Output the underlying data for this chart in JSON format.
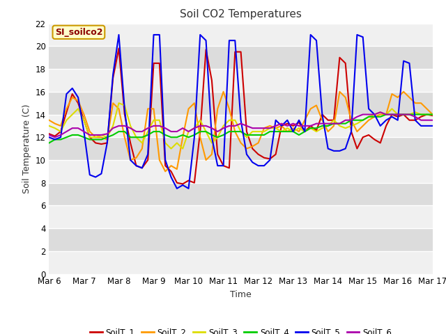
{
  "title": "Soil CO2 Temperatures",
  "xlabel": "Time",
  "ylabel": "Soil Temperature (C)",
  "annotation": "SI_soilco2",
  "ylim": [
    0,
    22
  ],
  "yticks": [
    0,
    2,
    4,
    6,
    8,
    10,
    12,
    14,
    16,
    18,
    20,
    22
  ],
  "x_labels": [
    "Mar 6",
    "Mar 7",
    "Mar 8",
    "Mar 9",
    "Mar 10",
    "Mar 11",
    "Mar 12",
    "Mar 13",
    "Mar 14",
    "Mar 15",
    "Mar 16",
    "Mar 17"
  ],
  "colors": {
    "SoilT_1": "#cc0000",
    "SoilT_2": "#ff9900",
    "SoilT_3": "#dddd00",
    "SoilT_4": "#00cc00",
    "SoilT_5": "#0000ee",
    "SoilT_6": "#aa00aa"
  },
  "fig_bg": "#ffffff",
  "plot_bg_dark": "#dcdcdc",
  "plot_bg_light": "#f0f0f0",
  "grid_color": "#ffffff",
  "SoilT_1": [
    12.3,
    12.1,
    12.5,
    14.2,
    15.8,
    15.0,
    13.5,
    12.0,
    11.5,
    11.4,
    11.5,
    17.2,
    19.8,
    14.0,
    11.5,
    9.5,
    9.3,
    10.0,
    18.5,
    18.5,
    9.5,
    9.0,
    8.0,
    7.9,
    8.2,
    8.0,
    12.5,
    19.7,
    17.0,
    10.5,
    9.5,
    9.3,
    19.5,
    19.5,
    12.5,
    11.0,
    10.5,
    10.2,
    10.1,
    10.5,
    13.0,
    13.2,
    13.0,
    13.3,
    12.5,
    13.0,
    12.6,
    14.0,
    13.5,
    13.5,
    19.0,
    18.5,
    12.5,
    11.0,
    12.0,
    12.2,
    11.8,
    11.5,
    13.0,
    14.0,
    13.8,
    14.0,
    13.5,
    13.5,
    13.8,
    14.0,
    13.9
  ],
  "SoilT_2": [
    13.5,
    13.2,
    13.0,
    14.5,
    15.5,
    15.2,
    14.0,
    12.5,
    12.0,
    12.0,
    11.8,
    15.0,
    14.5,
    12.0,
    10.0,
    10.2,
    11.0,
    14.5,
    14.5,
    10.0,
    9.0,
    9.5,
    9.2,
    12.0,
    14.5,
    15.0,
    12.0,
    10.0,
    10.5,
    14.5,
    16.0,
    14.5,
    12.5,
    11.5,
    11.0,
    11.2,
    11.5,
    12.8,
    13.0,
    12.8,
    13.0,
    12.5,
    12.8,
    12.5,
    13.5,
    14.5,
    14.8,
    13.5,
    12.5,
    13.0,
    16.0,
    15.5,
    13.5,
    12.5,
    13.0,
    13.5,
    13.8,
    14.0,
    14.0,
    15.8,
    15.5,
    16.0,
    15.5,
    15.0,
    15.0,
    14.5,
    14.0
  ],
  "SoilT_3": [
    13.0,
    12.8,
    12.5,
    13.5,
    14.0,
    14.5,
    13.5,
    12.0,
    12.0,
    12.2,
    12.0,
    13.0,
    15.0,
    14.8,
    13.0,
    12.0,
    11.5,
    12.5,
    13.5,
    13.5,
    11.5,
    11.0,
    11.5,
    11.0,
    12.5,
    12.8,
    13.5,
    12.5,
    11.5,
    12.0,
    13.0,
    13.5,
    13.5,
    12.5,
    12.0,
    12.5,
    12.5,
    12.5,
    12.8,
    12.8,
    12.5,
    12.8,
    12.5,
    12.8,
    12.5,
    12.8,
    12.5,
    12.8,
    13.0,
    13.5,
    13.0,
    12.8,
    13.0,
    13.2,
    13.5,
    13.8,
    14.0,
    14.2,
    14.0,
    14.5,
    14.0,
    14.0,
    14.0,
    14.2,
    14.0,
    14.0,
    14.0
  ],
  "SoilT_4": [
    11.5,
    11.8,
    11.8,
    12.0,
    12.2,
    12.2,
    12.0,
    11.8,
    11.8,
    11.8,
    12.0,
    12.2,
    12.5,
    12.5,
    12.0,
    12.0,
    12.0,
    12.2,
    12.5,
    12.5,
    12.2,
    12.0,
    12.0,
    12.2,
    12.0,
    12.2,
    12.5,
    12.5,
    12.2,
    12.0,
    12.2,
    12.5,
    12.5,
    12.5,
    12.2,
    12.2,
    12.2,
    12.2,
    12.5,
    12.5,
    12.5,
    12.5,
    12.5,
    12.2,
    12.5,
    12.8,
    12.8,
    13.0,
    13.0,
    13.2,
    13.2,
    13.2,
    13.5,
    13.5,
    13.5,
    13.8,
    13.8,
    13.8,
    14.0,
    14.0,
    14.0,
    14.0,
    14.0,
    14.0,
    14.0,
    14.0,
    14.0
  ],
  "SoilT_5": [
    12.0,
    11.8,
    12.0,
    15.8,
    16.3,
    15.5,
    12.5,
    8.7,
    8.5,
    8.8,
    11.5,
    17.5,
    21.0,
    14.5,
    10.0,
    9.5,
    9.3,
    10.5,
    21.0,
    21.0,
    10.0,
    8.5,
    7.5,
    7.8,
    7.5,
    12.0,
    21.0,
    20.5,
    12.0,
    9.5,
    9.5,
    20.5,
    20.5,
    13.5,
    10.5,
    9.8,
    9.5,
    9.5,
    10.0,
    13.5,
    13.0,
    13.5,
    12.5,
    13.5,
    12.5,
    21.0,
    20.5,
    14.0,
    11.0,
    10.8,
    10.8,
    11.0,
    12.5,
    21.0,
    20.8,
    14.5,
    14.0,
    13.0,
    13.5,
    13.8,
    13.5,
    18.7,
    18.5,
    13.5,
    13.0,
    13.0,
    13.0
  ],
  "SoilT_6": [
    12.2,
    12.0,
    12.2,
    12.5,
    12.8,
    12.8,
    12.5,
    12.2,
    12.2,
    12.2,
    12.3,
    12.8,
    13.0,
    13.0,
    12.8,
    12.5,
    12.5,
    12.8,
    13.0,
    13.0,
    12.8,
    12.5,
    12.5,
    12.8,
    12.5,
    12.8,
    13.0,
    13.0,
    12.8,
    12.5,
    12.8,
    13.0,
    13.0,
    13.2,
    13.0,
    12.8,
    12.8,
    12.8,
    12.8,
    13.0,
    13.2,
    13.0,
    13.2,
    13.0,
    13.0,
    13.0,
    13.2,
    13.2,
    13.2,
    13.2,
    13.2,
    13.5,
    13.5,
    13.8,
    14.0,
    14.0,
    14.0,
    14.2,
    14.0,
    14.0,
    14.0,
    14.0,
    14.0,
    13.8,
    13.5,
    13.5,
    13.5
  ]
}
